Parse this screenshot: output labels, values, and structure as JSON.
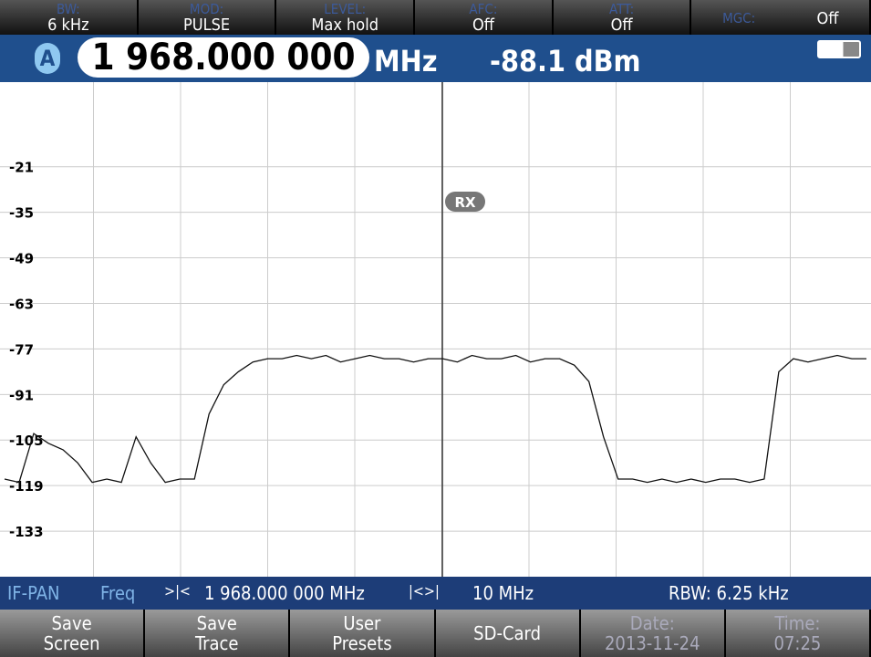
{
  "top_bar": [
    {
      "label": "BW:",
      "value": "6 kHz"
    },
    {
      "label": "MOD:",
      "value": "PULSE"
    },
    {
      "label": "LEVEL:",
      "value": "Max hold"
    },
    {
      "label": "AFC:",
      "value": "Off"
    },
    {
      "label": "ATT:",
      "value": "Off"
    },
    {
      "label": "MGC:",
      "value": "Off"
    }
  ],
  "header": {
    "channel": "A",
    "frequency": "1 968.000 000",
    "frequency_unit": "MHz",
    "level": "-88.1 dBm"
  },
  "chart_data": {
    "type": "line",
    "marker": "RX",
    "ylim": [
      -147,
      5
    ],
    "yticks": [
      -21,
      -35,
      -49,
      -63,
      -77,
      -91,
      -105,
      -119,
      -133
    ],
    "grid": true,
    "series": [
      {
        "color": "#111111",
        "values": [
          -117,
          -118,
          -103,
          -106,
          -108,
          -112,
          -118,
          -117,
          -118,
          -104,
          -112,
          -118,
          -117,
          -117,
          -97,
          -88,
          -84,
          -81,
          -80,
          -80,
          -79,
          -80,
          -79,
          -81,
          -80,
          -79,
          -80,
          -80,
          -81,
          -80,
          -80,
          -81,
          -79,
          -80,
          -80,
          -79,
          -81,
          -80,
          -80,
          -82,
          -87,
          -104,
          -117,
          -117,
          -118,
          -117,
          -118,
          -117,
          -118,
          -117,
          -117,
          -118,
          -117,
          -84,
          -80,
          -81,
          -80,
          -79,
          -80,
          -80
        ]
      }
    ]
  },
  "status_bar": {
    "mode": "IF-PAN",
    "param": "Freq",
    "center": "1 968.000 000 MHz",
    "span": "10 MHz",
    "rbw": "RBW: 6.25 kHz"
  },
  "softkeys": [
    {
      "lines": [
        "Save",
        "Screen"
      ]
    },
    {
      "lines": [
        "Save",
        "Trace"
      ]
    },
    {
      "lines": [
        "User",
        "Presets"
      ]
    },
    {
      "lines": [
        "SD-Card"
      ]
    },
    {
      "lines": [
        "Date:",
        "2013-11-24"
      ]
    },
    {
      "lines": [
        "Time:",
        "07:25"
      ]
    }
  ]
}
